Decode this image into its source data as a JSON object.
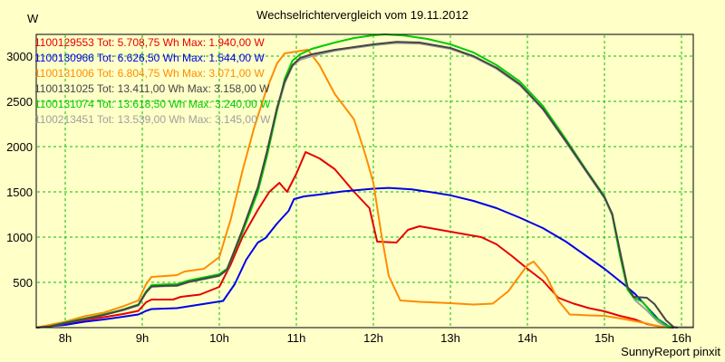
{
  "title": "Wechselrichtervergleich vom 19.11.2012",
  "y_unit": "W",
  "footer": "SunnyReport pinxit",
  "colors": {
    "background": "#ffffc8",
    "grid": "#00c000",
    "axis": "#000000",
    "text": "#000000"
  },
  "chart_data": {
    "type": "line",
    "title": "Wechselrichtervergleich vom 19.11.2012",
    "ylabel": "W",
    "xlabel": "",
    "grid": "dashed-green",
    "legend_position": "top-left",
    "xlim": [
      7.624,
      16.153
    ],
    "ylim": [
      0,
      3240
    ],
    "y_ticks": [
      500,
      1000,
      1500,
      2000,
      2500,
      3000
    ],
    "x_ticks": [
      "8h",
      "9h",
      "10h",
      "11h",
      "12h",
      "13h",
      "14h",
      "15h",
      "16h"
    ],
    "x_tick_hours": [
      8,
      9,
      10,
      11,
      12,
      13,
      14,
      15,
      16
    ],
    "draw_order": [
      0,
      1,
      2,
      5,
      4,
      3
    ],
    "series": [
      {
        "id": "1100129553",
        "legend": "1100129553 Tot: 5.708,75 Wh Max: 1.940,00 W",
        "tot_wh": "5.708,75",
        "max_w": "1.940,00",
        "color": "#e60000",
        "points": [
          [
            7.62,
            0
          ],
          [
            7.8,
            20
          ],
          [
            8.0,
            40
          ],
          [
            8.25,
            85
          ],
          [
            8.5,
            115
          ],
          [
            8.75,
            150
          ],
          [
            8.95,
            185
          ],
          [
            9.05,
            280
          ],
          [
            9.12,
            310
          ],
          [
            9.4,
            310
          ],
          [
            9.5,
            340
          ],
          [
            9.75,
            365
          ],
          [
            10.0,
            450
          ],
          [
            10.15,
            700
          ],
          [
            10.3,
            1000
          ],
          [
            10.5,
            1300
          ],
          [
            10.65,
            1500
          ],
          [
            10.78,
            1600
          ],
          [
            10.88,
            1500
          ],
          [
            11.0,
            1700
          ],
          [
            11.12,
            1940
          ],
          [
            11.3,
            1870
          ],
          [
            11.5,
            1750
          ],
          [
            11.75,
            1500
          ],
          [
            11.95,
            1320
          ],
          [
            12.05,
            950
          ],
          [
            12.3,
            940
          ],
          [
            12.45,
            1080
          ],
          [
            12.6,
            1120
          ],
          [
            12.8,
            1090
          ],
          [
            13.0,
            1060
          ],
          [
            13.2,
            1030
          ],
          [
            13.4,
            1000
          ],
          [
            13.6,
            920
          ],
          [
            13.8,
            790
          ],
          [
            14.0,
            650
          ],
          [
            14.2,
            520
          ],
          [
            14.4,
            330
          ],
          [
            14.6,
            265
          ],
          [
            14.8,
            215
          ],
          [
            15.0,
            180
          ],
          [
            15.2,
            130
          ],
          [
            15.4,
            90
          ],
          [
            15.55,
            40
          ],
          [
            15.75,
            8
          ],
          [
            15.9,
            0
          ]
        ]
      },
      {
        "id": "1100130966",
        "legend": "1100130966 Tot: 6.626,50 Wh Max: 1.544,00 W",
        "tot_wh": "6.626,50",
        "max_w": "1.544,00",
        "color": "#0000e6",
        "points": [
          [
            7.62,
            0
          ],
          [
            7.8,
            15
          ],
          [
            8.0,
            30
          ],
          [
            8.25,
            65
          ],
          [
            8.5,
            90
          ],
          [
            8.75,
            120
          ],
          [
            8.95,
            145
          ],
          [
            9.05,
            185
          ],
          [
            9.12,
            205
          ],
          [
            9.45,
            215
          ],
          [
            9.75,
            255
          ],
          [
            10.05,
            295
          ],
          [
            10.2,
            480
          ],
          [
            10.35,
            750
          ],
          [
            10.5,
            940
          ],
          [
            10.6,
            990
          ],
          [
            10.75,
            1150
          ],
          [
            10.9,
            1290
          ],
          [
            10.97,
            1420
          ],
          [
            11.1,
            1450
          ],
          [
            11.3,
            1470
          ],
          [
            11.6,
            1505
          ],
          [
            12.0,
            1535
          ],
          [
            12.2,
            1544
          ],
          [
            12.5,
            1528
          ],
          [
            12.8,
            1490
          ],
          [
            13.0,
            1462
          ],
          [
            13.3,
            1400
          ],
          [
            13.6,
            1320
          ],
          [
            13.9,
            1215
          ],
          [
            14.2,
            1100
          ],
          [
            14.5,
            950
          ],
          [
            14.75,
            800
          ],
          [
            15.0,
            650
          ],
          [
            15.25,
            480
          ],
          [
            15.4,
            370
          ],
          [
            15.55,
            230
          ],
          [
            15.7,
            90
          ],
          [
            15.85,
            5
          ],
          [
            15.9,
            0
          ]
        ]
      },
      {
        "id": "1100131006",
        "legend": "1100131006 Tot: 6.804,75 Wh Max: 3.071,00 W",
        "tot_wh": "6.804,75",
        "max_w": "3.071,00",
        "color": "#ff8c00",
        "points": [
          [
            7.62,
            0
          ],
          [
            7.8,
            30
          ],
          [
            8.0,
            65
          ],
          [
            8.25,
            125
          ],
          [
            8.5,
            165
          ],
          [
            8.75,
            235
          ],
          [
            8.95,
            300
          ],
          [
            9.05,
            480
          ],
          [
            9.12,
            560
          ],
          [
            9.3,
            570
          ],
          [
            9.45,
            580
          ],
          [
            9.55,
            620
          ],
          [
            9.8,
            650
          ],
          [
            10.0,
            780
          ],
          [
            10.15,
            1200
          ],
          [
            10.3,
            1730
          ],
          [
            10.45,
            2200
          ],
          [
            10.6,
            2600
          ],
          [
            10.75,
            2920
          ],
          [
            10.85,
            3030
          ],
          [
            11.0,
            3050
          ],
          [
            11.15,
            3071
          ],
          [
            11.3,
            2900
          ],
          [
            11.5,
            2580
          ],
          [
            11.75,
            2300
          ],
          [
            11.9,
            1900
          ],
          [
            12.0,
            1600
          ],
          [
            12.1,
            1050
          ],
          [
            12.2,
            570
          ],
          [
            12.35,
            300
          ],
          [
            12.6,
            285
          ],
          [
            13.0,
            270
          ],
          [
            13.3,
            255
          ],
          [
            13.55,
            265
          ],
          [
            13.75,
            400
          ],
          [
            14.0,
            690
          ],
          [
            14.08,
            730
          ],
          [
            14.25,
            560
          ],
          [
            14.4,
            300
          ],
          [
            14.55,
            145
          ],
          [
            14.8,
            135
          ],
          [
            15.0,
            130
          ],
          [
            15.25,
            95
          ],
          [
            15.5,
            55
          ],
          [
            15.7,
            15
          ],
          [
            15.85,
            0
          ]
        ]
      },
      {
        "id": "1100131025",
        "legend": "1100131025 Tot: 13.411,00 Wh Max: 3.158,00 W",
        "tot_wh": "13.411,00",
        "max_w": "3.158,00",
        "color": "#454545",
        "points": [
          [
            7.62,
            0
          ],
          [
            7.8,
            13
          ],
          [
            8.0,
            50
          ],
          [
            8.25,
            95
          ],
          [
            8.5,
            140
          ],
          [
            8.75,
            195
          ],
          [
            8.95,
            250
          ],
          [
            9.05,
            390
          ],
          [
            9.12,
            455
          ],
          [
            9.3,
            462
          ],
          [
            9.45,
            465
          ],
          [
            9.6,
            505
          ],
          [
            9.8,
            540
          ],
          [
            10.0,
            575
          ],
          [
            10.1,
            640
          ],
          [
            10.3,
            1080
          ],
          [
            10.5,
            1550
          ],
          [
            10.62,
            1950
          ],
          [
            10.75,
            2430
          ],
          [
            10.85,
            2720
          ],
          [
            10.95,
            2900
          ],
          [
            11.05,
            2980
          ],
          [
            11.2,
            3020
          ],
          [
            11.5,
            3070
          ],
          [
            11.75,
            3100
          ],
          [
            12.0,
            3130
          ],
          [
            12.3,
            3158
          ],
          [
            12.6,
            3150
          ],
          [
            13.0,
            3090
          ],
          [
            13.3,
            3000
          ],
          [
            13.6,
            2870
          ],
          [
            13.9,
            2690
          ],
          [
            14.2,
            2420
          ],
          [
            14.5,
            2060
          ],
          [
            14.75,
            1750
          ],
          [
            15.0,
            1440
          ],
          [
            15.1,
            1260
          ],
          [
            15.2,
            850
          ],
          [
            15.3,
            450
          ],
          [
            15.38,
            340
          ],
          [
            15.55,
            330
          ],
          [
            15.65,
            260
          ],
          [
            15.8,
            80
          ],
          [
            15.9,
            5
          ],
          [
            15.95,
            0
          ]
        ]
      },
      {
        "id": "1100131074",
        "legend": "1100131074 Tot: 13.618,50 Wh Max: 3.240,00 W",
        "tot_wh": "13.618,50",
        "max_w": "3.240,00",
        "color": "#00cc00",
        "points": [
          [
            7.62,
            0
          ],
          [
            7.8,
            14
          ],
          [
            8.0,
            55
          ],
          [
            8.25,
            100
          ],
          [
            8.5,
            145
          ],
          [
            8.75,
            200
          ],
          [
            8.95,
            255
          ],
          [
            9.05,
            400
          ],
          [
            9.12,
            470
          ],
          [
            9.3,
            478
          ],
          [
            9.45,
            480
          ],
          [
            9.6,
            520
          ],
          [
            9.8,
            555
          ],
          [
            10.0,
            590
          ],
          [
            10.1,
            650
          ],
          [
            10.3,
            1050
          ],
          [
            10.5,
            1500
          ],
          [
            10.62,
            1900
          ],
          [
            10.75,
            2400
          ],
          [
            10.85,
            2750
          ],
          [
            10.95,
            2950
          ],
          [
            11.05,
            3020
          ],
          [
            11.2,
            3080
          ],
          [
            11.5,
            3150
          ],
          [
            11.75,
            3200
          ],
          [
            12.0,
            3230
          ],
          [
            12.15,
            3240
          ],
          [
            12.4,
            3228
          ],
          [
            12.7,
            3190
          ],
          [
            13.0,
            3130
          ],
          [
            13.3,
            3040
          ],
          [
            13.6,
            2900
          ],
          [
            13.9,
            2720
          ],
          [
            14.2,
            2450
          ],
          [
            14.5,
            2080
          ],
          [
            14.75,
            1760
          ],
          [
            15.0,
            1450
          ],
          [
            15.1,
            1250
          ],
          [
            15.2,
            800
          ],
          [
            15.3,
            420
          ],
          [
            15.38,
            330
          ],
          [
            15.5,
            280
          ],
          [
            15.65,
            120
          ],
          [
            15.8,
            25
          ],
          [
            15.9,
            3
          ]
        ]
      },
      {
        "id": "1100213451",
        "legend": "1100213451 Tot: 13.539,00 Wh Max: 3.145,00 W",
        "tot_wh": "13.539,00",
        "max_w": "3.145,00",
        "color": "#a0a0a0",
        "points": [
          [
            7.62,
            0
          ],
          [
            7.8,
            12
          ],
          [
            8.0,
            48
          ],
          [
            8.25,
            92
          ],
          [
            8.5,
            138
          ],
          [
            8.75,
            192
          ],
          [
            8.95,
            245
          ],
          [
            9.05,
            385
          ],
          [
            9.12,
            450
          ],
          [
            9.3,
            458
          ],
          [
            9.45,
            460
          ],
          [
            9.6,
            500
          ],
          [
            9.8,
            535
          ],
          [
            10.0,
            570
          ],
          [
            10.1,
            635
          ],
          [
            10.3,
            1070
          ],
          [
            10.5,
            1530
          ],
          [
            10.62,
            1930
          ],
          [
            10.75,
            2400
          ],
          [
            10.85,
            2700
          ],
          [
            10.95,
            2890
          ],
          [
            11.05,
            2960
          ],
          [
            11.2,
            3000
          ],
          [
            11.5,
            3060
          ],
          [
            11.75,
            3090
          ],
          [
            12.0,
            3120
          ],
          [
            12.3,
            3145
          ],
          [
            12.6,
            3138
          ],
          [
            13.0,
            3080
          ],
          [
            13.3,
            2990
          ],
          [
            13.6,
            2860
          ],
          [
            13.9,
            2680
          ],
          [
            14.2,
            2410
          ],
          [
            14.5,
            2050
          ],
          [
            14.75,
            1740
          ],
          [
            15.0,
            1430
          ],
          [
            15.1,
            1240
          ],
          [
            15.2,
            830
          ],
          [
            15.3,
            430
          ],
          [
            15.4,
            300
          ],
          [
            15.55,
            190
          ],
          [
            15.7,
            60
          ],
          [
            15.8,
            12
          ],
          [
            15.9,
            5
          ],
          [
            16.15,
            5
          ]
        ]
      }
    ]
  }
}
